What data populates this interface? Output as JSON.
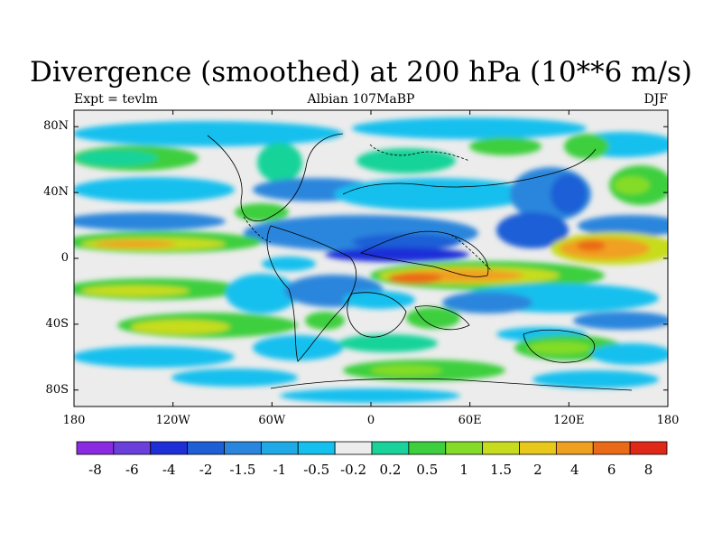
{
  "title": "Divergence (smoothed) at 200 hPa (10**6 m/s)",
  "subtitle_left": "Expt = tevlm",
  "subtitle_center": "Albian   107MaBP",
  "subtitle_right": "DJF",
  "lat_ticks": [
    {
      "label": "80N",
      "lat": 80
    },
    {
      "label": "40N",
      "lat": 40
    },
    {
      "label": "0",
      "lat": 0
    },
    {
      "label": "40S",
      "lat": -40
    },
    {
      "label": "80S",
      "lat": -80
    }
  ],
  "lon_ticks": [
    {
      "label": "180",
      "lon": -180
    },
    {
      "label": "120W",
      "lon": -120
    },
    {
      "label": "60W",
      "lon": -60
    },
    {
      "label": "0",
      "lon": 0
    },
    {
      "label": "60E",
      "lon": 60
    },
    {
      "label": "120E",
      "lon": 120
    },
    {
      "label": "180",
      "lon": 180
    }
  ],
  "colorbar": {
    "colors": [
      "#8a2be2",
      "#6a3fdc",
      "#1e2fd8",
      "#1f5fd6",
      "#2a86dc",
      "#1fa9e6",
      "#13c0ee",
      "#ececec",
      "#19d39a",
      "#3dcf3d",
      "#84dc28",
      "#c8dc1e",
      "#e8c81a",
      "#f0a020",
      "#eb6a18",
      "#e02818"
    ],
    "labels": [
      "-8",
      "-6",
      "-4",
      "-2",
      "-1.5",
      "-1",
      "-0.5",
      "-0.2",
      "0.2",
      "0.5",
      "1",
      "1.5",
      "2",
      "4",
      "6",
      "8"
    ]
  }
}
